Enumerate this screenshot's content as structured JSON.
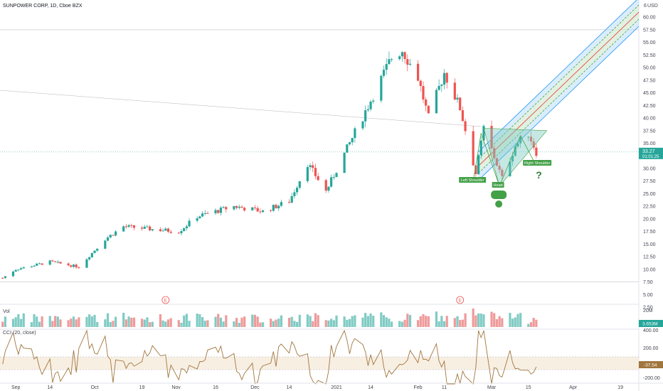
{
  "header": {
    "symbol": "SUNPOWER CORP, 1D, Cboe BZX"
  },
  "price_axis": {
    "currency": "USD",
    "ticks": [
      "60.00",
      "57.50",
      "55.00",
      "52.50",
      "50.00",
      "47.50",
      "45.00",
      "42.50",
      "40.00",
      "37.50",
      "35.00",
      "32.50",
      "30.00",
      "27.50",
      "25.00",
      "22.50",
      "20.00",
      "17.50",
      "15.00",
      "12.50",
      "10.00",
      "7.50",
      "5.00",
      "2.50"
    ],
    "top_tick": "6",
    "last_price": "33.27",
    "countdown": "01:01:25"
  },
  "volume_pane": {
    "label": "Vol",
    "axis_label": "20M",
    "current": "3.653M"
  },
  "cci_pane": {
    "label": "CCI (20, close)",
    "ticks": [
      "400.00",
      "200.00",
      "-200.00"
    ],
    "current": "-37.54"
  },
  "time_axis": {
    "labels": [
      "Sep",
      "14",
      "Oct",
      "19",
      "Nov",
      "16",
      "Dec",
      "14",
      "2021",
      "14",
      "Feb",
      "11",
      "Mar",
      "15",
      "Apr",
      "19"
    ]
  },
  "annotations": {
    "left_shoulder": "Left Shoulder",
    "head": "Head",
    "right_shoulder": "Right Shoulder",
    "question": "?",
    "earnings": "E"
  },
  "colors": {
    "up": "#26a69a",
    "down": "#ef5350",
    "vol_up": "#80cbc4",
    "vol_down": "#ef9a9a",
    "channel": "#2196f3",
    "median": "#e53935",
    "pattern": "#43a047",
    "cci": "#a0763c"
  },
  "chart_data": {
    "type": "candlestick",
    "price_close_points": [
      {
        "date": "2020-08-27",
        "close": 8.3
      },
      {
        "date": "2020-09-01",
        "close": 10.0
      },
      {
        "date": "2020-09-14",
        "close": 11.5
      },
      {
        "date": "2020-09-25",
        "close": 10.5
      },
      {
        "date": "2020-10-05",
        "close": 16.0
      },
      {
        "date": "2020-10-12",
        "close": 18.5
      },
      {
        "date": "2020-10-22",
        "close": 18.0
      },
      {
        "date": "2020-11-02",
        "close": 17.5
      },
      {
        "date": "2020-11-09",
        "close": 20.5
      },
      {
        "date": "2020-11-23",
        "close": 22.5
      },
      {
        "date": "2020-12-04",
        "close": 21.5
      },
      {
        "date": "2020-12-14",
        "close": 23.5
      },
      {
        "date": "2020-12-21",
        "close": 31.0
      },
      {
        "date": "2020-12-28",
        "close": 25.5
      },
      {
        "date": "2021-01-06",
        "close": 35.0
      },
      {
        "date": "2021-01-14",
        "close": 43.5
      },
      {
        "date": "2021-01-22",
        "close": 52.0
      },
      {
        "date": "2021-01-26",
        "close": 53.5
      },
      {
        "date": "2021-02-01",
        "close": 48.0
      },
      {
        "date": "2021-02-05",
        "close": 40.0
      },
      {
        "date": "2021-02-11",
        "close": 49.0
      },
      {
        "date": "2021-02-17",
        "close": 42.0
      },
      {
        "date": "2021-02-23",
        "close": 29.0
      },
      {
        "date": "2021-02-26",
        "close": 38.0
      },
      {
        "date": "2021-03-05",
        "close": 28.0
      },
      {
        "date": "2021-03-10",
        "close": 34.5
      },
      {
        "date": "2021-03-15",
        "close": 37.0
      },
      {
        "date": "2021-03-18",
        "close": 33.27
      }
    ],
    "x_range": [
      "2020-08-26",
      "2021-04-26"
    ],
    "y_range": [
      3.5,
      62
    ],
    "earnings_dates": [
      "2020-10-28",
      "2021-02-17"
    ],
    "cci_range": [
      -200,
      400
    ],
    "last_close": 33.27,
    "last_volume": "3.653M",
    "last_cci": -37.54
  }
}
